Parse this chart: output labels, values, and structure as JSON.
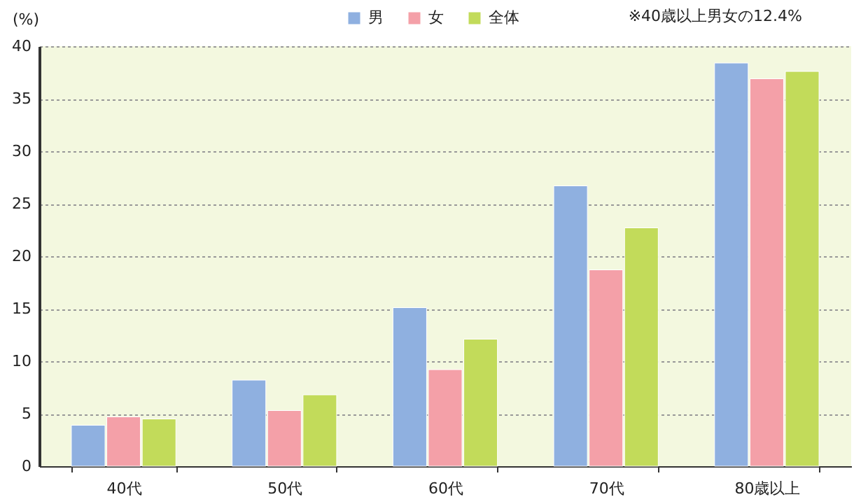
{
  "chart_data": {
    "type": "bar",
    "ylabel": "(%)",
    "categories": [
      "40代",
      "50代",
      "60代",
      "70代",
      "80歳以上"
    ],
    "series": [
      {
        "name": "男",
        "color": "#8fb0e0",
        "values": [
          3.9,
          8.2,
          15.1,
          26.7,
          38.4
        ]
      },
      {
        "name": "女",
        "color": "#f4a0a8",
        "values": [
          4.7,
          5.3,
          9.2,
          18.7,
          36.9
        ]
      },
      {
        "name": "全体",
        "color": "#c2db5a",
        "values": [
          4.5,
          6.8,
          12.1,
          22.7,
          37.6
        ]
      }
    ],
    "annotations": [
      "※40歳以上男女の12.4%"
    ],
    "ylim": [
      0,
      40
    ],
    "yticks": [
      0,
      5,
      10,
      15,
      20,
      25,
      30,
      35,
      40
    ],
    "grid": "y",
    "legend": "top right"
  }
}
